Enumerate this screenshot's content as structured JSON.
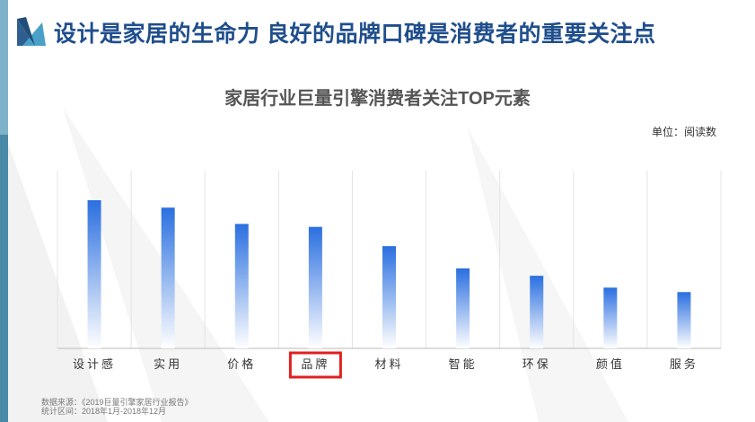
{
  "header": {
    "title": "设计是家居的生命力  良好的品牌口碑是消费者的重要关注点"
  },
  "chart_data": {
    "type": "bar",
    "title": "家居行业巨量引擎消费者关注TOP元素",
    "unit_label": "单位：阅读数",
    "categories": [
      "设计感",
      "实用",
      "价格",
      "品牌",
      "材料",
      "智能",
      "环保",
      "颜值",
      "服务"
    ],
    "values": [
      100,
      95,
      84,
      82,
      69,
      54,
      49,
      41,
      38
    ],
    "highlighted_category": "品牌",
    "highlight_color": "#e02020",
    "bar_color_top": "#2a6fe0",
    "bar_color_bottom": "#ffffff",
    "ylim": [
      0,
      120
    ],
    "grid": "vertical separators"
  },
  "footer": {
    "source": "数据来源：《2019巨量引擎家居行业报告》",
    "period": "统计区间：2018年1月-2018年12月"
  }
}
